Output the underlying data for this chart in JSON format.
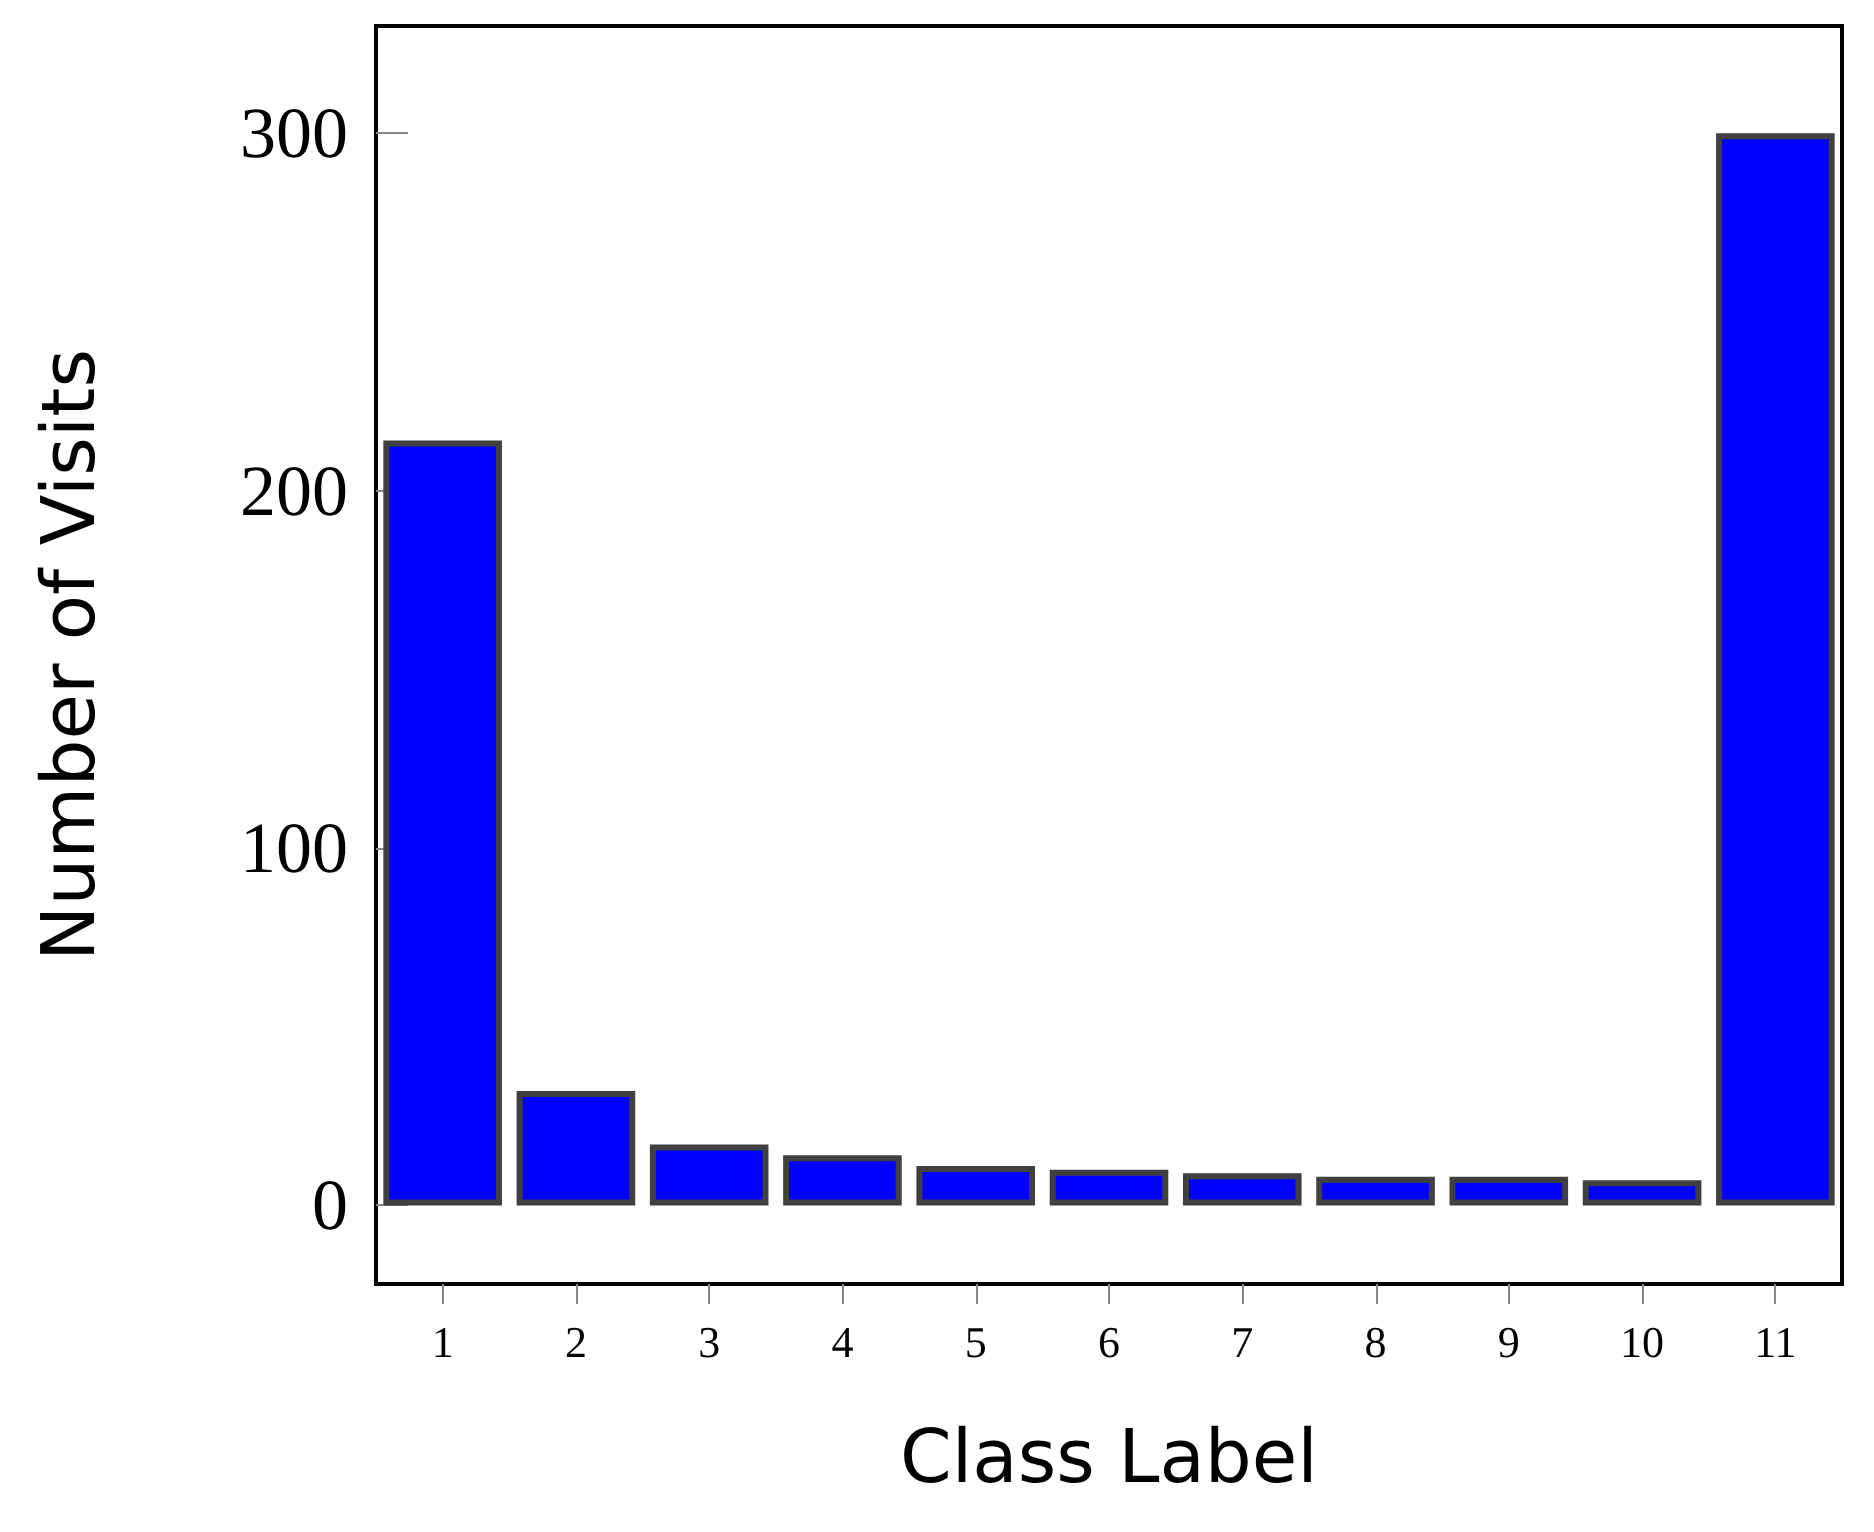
{
  "chart_data": {
    "type": "bar",
    "xlabel": "Class Label",
    "ylabel": "Number of Visits",
    "categories": [
      "1",
      "2",
      "3",
      "4",
      "5",
      "6",
      "7",
      "8",
      "9",
      "10",
      "11"
    ],
    "values": [
      214,
      32,
      17,
      14,
      11,
      10,
      9,
      8,
      8,
      7,
      300
    ],
    "color": "#0000ff",
    "ylim": [
      -22,
      330
    ],
    "yticks": [
      0,
      100,
      200,
      300
    ],
    "grid": false
  }
}
